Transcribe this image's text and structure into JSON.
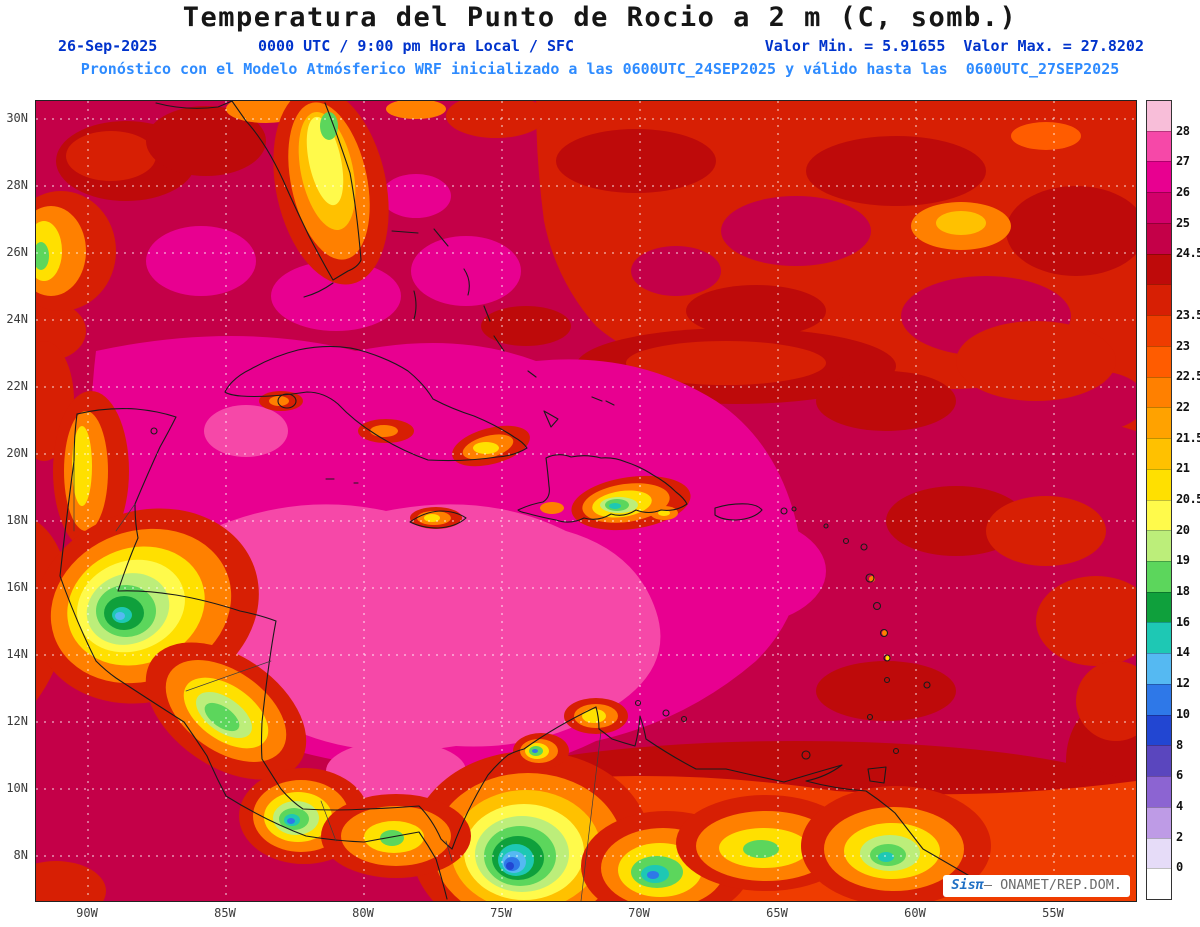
{
  "header": {
    "title": "Temperatura del Punto de Rocio a 2 m (C, somb.)",
    "date": "26-Sep-2025",
    "time": "0000 UTC / 9:00 pm Hora Local / SFC",
    "valor_min": "Valor Min. = 5.91655",
    "valor_max": "Valor Max. = 27.8202",
    "model_line": "Pronóstico con el Modelo Atmósferico WRF inicializado a las 0600UTC_24SEP2025 y válido hasta las  0600UTC_27SEP2025"
  },
  "map": {
    "lat_ticks": [
      "30N",
      "28N",
      "26N",
      "24N",
      "22N",
      "20N",
      "18N",
      "16N",
      "14N",
      "12N",
      "10N",
      "8N"
    ],
    "lon_ticks": [
      "90W",
      "85W",
      "80W",
      "75W",
      "70W",
      "65W",
      "60W",
      "55W"
    ]
  },
  "colorbar": {
    "segments": [
      {
        "color": "#F8BED9",
        "label": ""
      },
      {
        "color": "#F648A8",
        "label": "28"
      },
      {
        "color": "#E80090",
        "label": "27"
      },
      {
        "color": "#D2006A",
        "label": "26"
      },
      {
        "color": "#C40048",
        "label": "25"
      },
      {
        "color": "#BE0A0A",
        "label": "24.5"
      },
      {
        "color": "#D71F04",
        "label": ""
      },
      {
        "color": "#EF3C00",
        "label": "23.5"
      },
      {
        "color": "#FF5C00",
        "label": "23"
      },
      {
        "color": "#FF8000",
        "label": "22.5"
      },
      {
        "color": "#FFA200",
        "label": "22"
      },
      {
        "color": "#FFC100",
        "label": "21.5"
      },
      {
        "color": "#FFE000",
        "label": "21"
      },
      {
        "color": "#FFFA4B",
        "label": "20.5"
      },
      {
        "color": "#BCEE7A",
        "label": "20"
      },
      {
        "color": "#5CD65C",
        "label": "19"
      },
      {
        "color": "#0FA03C",
        "label": "18"
      },
      {
        "color": "#1EC8B4",
        "label": "16"
      },
      {
        "color": "#55B9F2",
        "label": "14"
      },
      {
        "color": "#2E78E8",
        "label": "12"
      },
      {
        "color": "#2246D2",
        "label": "10"
      },
      {
        "color": "#5A46BE",
        "label": "8"
      },
      {
        "color": "#8C64D2",
        "label": "6"
      },
      {
        "color": "#BE9BE6",
        "label": "4"
      },
      {
        "color": "#E6DCF8",
        "label": "2"
      },
      {
        "color": "#FFFFFF",
        "label": "0"
      }
    ]
  },
  "watermark": {
    "brand": "Sisπ",
    "credit": "– ONAMET/REP.DOM."
  },
  "chart_data": {
    "type": "heatmap",
    "title": "Temperatura del Punto de Rocio a 2 m (C, somb.)",
    "datetime_label": "26-Sep-2025 0000 UTC / 9:00 pm Hora Local / SFC",
    "model_note": "Pronóstico con el Modelo Atmósferico WRF inicializado a las 0600UTC_24SEP2025 y válido hasta las 0600UTC_27SEP2025",
    "value_min": 5.91655,
    "value_max": 27.8202,
    "x_tick_labels": [
      "90W",
      "85W",
      "80W",
      "75W",
      "70W",
      "65W",
      "60W",
      "55W"
    ],
    "y_tick_labels": [
      "30N",
      "28N",
      "26N",
      "24N",
      "22N",
      "20N",
      "18N",
      "16N",
      "14N",
      "12N",
      "10N",
      "8N"
    ],
    "grid": true,
    "legend_position": "right-colorbar",
    "colorbar_levels": [
      0,
      2,
      4,
      6,
      8,
      10,
      12,
      14,
      16,
      18,
      19,
      20,
      20.5,
      21,
      21.5,
      22,
      22.5,
      23,
      23.5,
      24,
      24.5,
      25,
      26,
      27,
      28
    ],
    "colorbar_colors_low_to_high": [
      "#FFFFFF",
      "#E6DCF8",
      "#BE9BE6",
      "#8C64D2",
      "#5A46BE",
      "#2246D2",
      "#2E78E8",
      "#55B9F2",
      "#1EC8B4",
      "#0FA03C",
      "#5CD65C",
      "#BCEE7A",
      "#FFFA4B",
      "#FFE000",
      "#FFC100",
      "#FFA200",
      "#FF8000",
      "#FF5C00",
      "#EF3C00",
      "#D71F04",
      "#BE0A0A",
      "#C40048",
      "#D2006A",
      "#E80090",
      "#F648A8",
      "#F8BED9"
    ]
  }
}
